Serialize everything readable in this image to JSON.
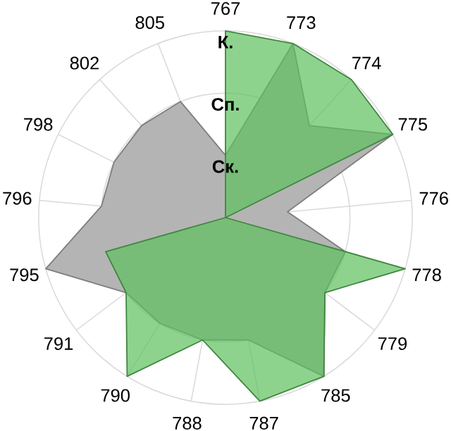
{
  "chart_data": {
    "type": "radar",
    "categories": [
      "767",
      "773",
      "774",
      "775",
      "776",
      "778",
      "779",
      "785",
      "787",
      "788",
      "790",
      "791",
      "795",
      "796",
      "798",
      "802",
      "805"
    ],
    "ylim": [
      0,
      3
    ],
    "yticks": [
      {
        "value": 1,
        "label": "Ск."
      },
      {
        "value": 2,
        "label": "Сп."
      },
      {
        "value": 3,
        "label": "К."
      }
    ],
    "grid": true,
    "series": [
      {
        "color": "#b4b4b4",
        "values": [
          1,
          3,
          2,
          3,
          1,
          2,
          2,
          3,
          2,
          2,
          2,
          2,
          3,
          2,
          2,
          2,
          2
        ]
      },
      {
        "color": "#5cc15c",
        "values": [
          3,
          3,
          3,
          3,
          0,
          3,
          2,
          3,
          3,
          2,
          3,
          2,
          2,
          0,
          0,
          0,
          0
        ]
      }
    ]
  }
}
